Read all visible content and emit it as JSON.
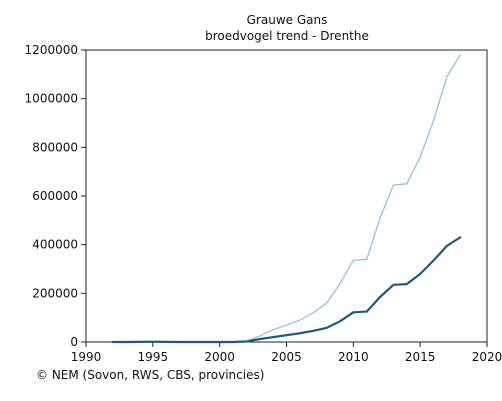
{
  "chart_data": {
    "type": "line",
    "title": "Grauwe Gans",
    "subtitle": "broedvogel trend - Drenthe",
    "xlabel": "",
    "ylabel": "",
    "xlim": [
      1990,
      2020
    ],
    "ylim": [
      0,
      1200000
    ],
    "xticks": [
      1990,
      1995,
      2000,
      2005,
      2010,
      2015,
      2020
    ],
    "yticks": [
      0,
      200000,
      400000,
      600000,
      800000,
      1000000,
      1200000
    ],
    "grid": false,
    "legend": "none",
    "series": [
      {
        "color": "#8fc3e6",
        "x": [
          1992,
          1993,
          1994,
          1995,
          1996,
          1997,
          1998,
          1999,
          2000,
          2001,
          2002,
          2003,
          2004,
          2005,
          2006,
          2007,
          2008,
          2009,
          2010,
          2011,
          2012,
          2013,
          2014,
          2015,
          2016,
          2017,
          2018
        ],
        "y": [
          0,
          0,
          1000,
          2000,
          1000,
          0,
          0,
          0,
          0,
          0,
          3000,
          25000,
          50000,
          70000,
          90000,
          120000,
          160000,
          240000,
          335000,
          340000,
          510000,
          645000,
          650000,
          760000,
          910000,
          1090000,
          1180000
        ]
      },
      {
        "color": "#1a5a80",
        "x": [
          1992,
          1993,
          1994,
          1995,
          1996,
          1997,
          1998,
          1999,
          2000,
          2001,
          2002,
          2003,
          2004,
          2005,
          2006,
          2007,
          2008,
          2009,
          2010,
          2011,
          2012,
          2013,
          2014,
          2015,
          2016,
          2017,
          2018
        ],
        "y": [
          0,
          0,
          500,
          1000,
          500,
          0,
          0,
          0,
          0,
          0,
          2000,
          12000,
          20000,
          28000,
          36000,
          46000,
          58000,
          85000,
          122000,
          125000,
          185000,
          235000,
          238000,
          280000,
          335000,
          395000,
          430000
        ]
      }
    ]
  },
  "credit": "© NEM (Sovon, RWS, CBS, provincies)"
}
